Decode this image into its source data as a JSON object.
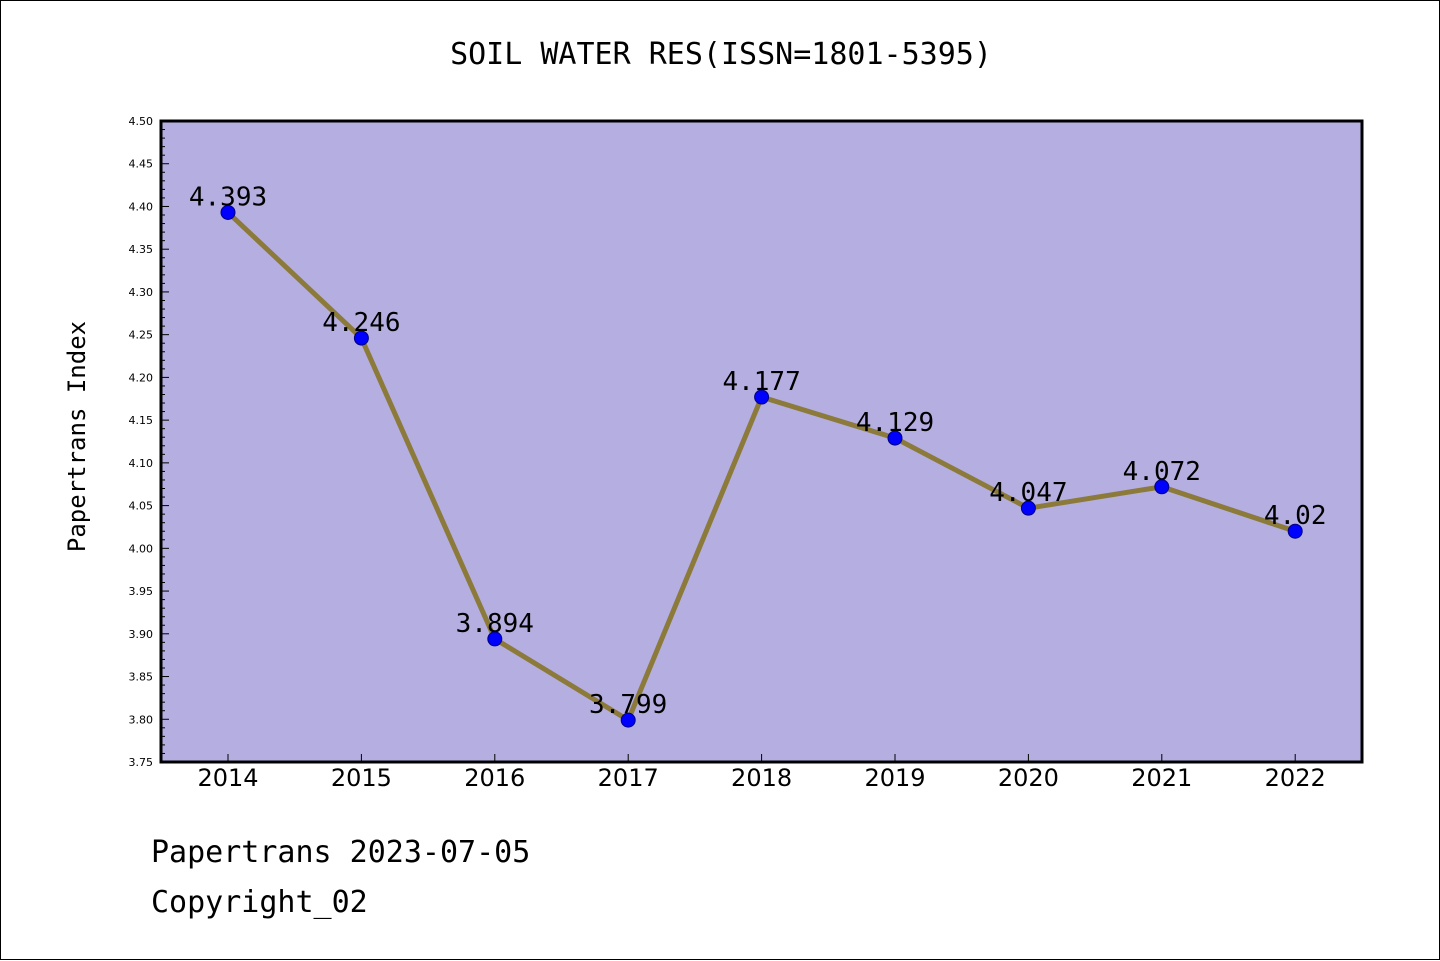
{
  "chart_data": {
    "type": "line",
    "title": "SOIL WATER RES(ISSN=1801-5395)",
    "xlabel": "",
    "ylabel": "Papertrans Index",
    "categories": [
      "2014",
      "2015",
      "2016",
      "2017",
      "2018",
      "2019",
      "2020",
      "2021",
      "2022"
    ],
    "values": [
      4.393,
      4.246,
      3.894,
      3.799,
      4.177,
      4.129,
      4.047,
      4.072,
      4.02
    ],
    "data_labels": [
      "4.393",
      "4.246",
      "3.894",
      "3.799",
      "4.177",
      "4.129",
      "4.047",
      "4.072",
      "4.02"
    ],
    "ylim": [
      3.75,
      4.5
    ],
    "yticks": [
      "3.75",
      "3.80",
      "3.85",
      "3.90",
      "3.95",
      "4.00",
      "4.05",
      "4.10",
      "4.15",
      "4.20",
      "4.25",
      "4.30",
      "4.35",
      "4.40",
      "4.45",
      "4.50"
    ],
    "grid": false,
    "colors": {
      "plot_background": "#b5aee0",
      "line": "#8b7a3a",
      "marker_fill": "#0000ff",
      "marker_edge": "#000080"
    }
  },
  "footer": {
    "line1": "Papertrans 2023-07-05",
    "line2": "Copyright_02"
  }
}
